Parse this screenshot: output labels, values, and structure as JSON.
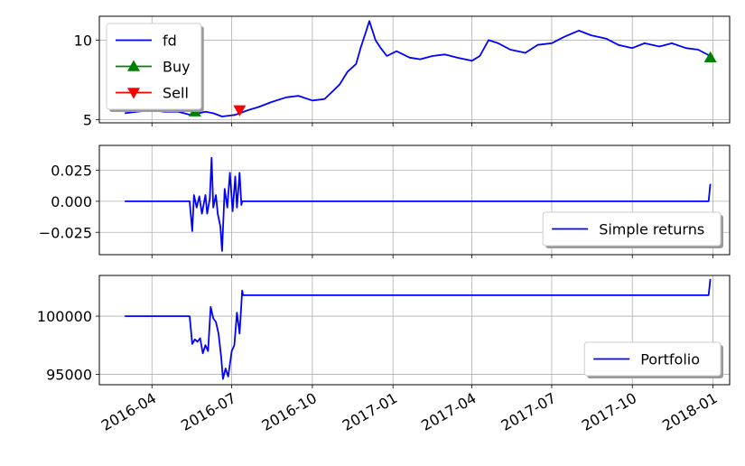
{
  "chart_data": [
    {
      "type": "line",
      "panel": "price",
      "ylim": [
        4.8,
        11.5
      ],
      "yticks": [
        5,
        10
      ],
      "grid": true,
      "legend": {
        "placement": "upper-left",
        "entries": [
          {
            "label": "fd",
            "color": "#0000ff",
            "marker": "none"
          },
          {
            "label": "Buy",
            "color": "#008000",
            "marker": "triangle-up"
          },
          {
            "label": "Sell",
            "color": "#ff0000",
            "marker": "triangle-down"
          }
        ]
      },
      "series": [
        {
          "name": "fd",
          "color": "#0000ff",
          "points": [
            [
              "2016-03-01",
              5.4
            ],
            [
              "2016-03-15",
              5.5
            ],
            [
              "2016-04-01",
              5.6
            ],
            [
              "2016-04-15",
              5.5
            ],
            [
              "2016-05-01",
              5.5
            ],
            [
              "2016-05-15",
              5.3
            ],
            [
              "2016-06-01",
              5.5
            ],
            [
              "2016-06-10",
              5.4
            ],
            [
              "2016-06-20",
              5.2
            ],
            [
              "2016-07-05",
              5.3
            ],
            [
              "2016-07-20",
              5.6
            ],
            [
              "2016-08-01",
              5.8
            ],
            [
              "2016-08-15",
              6.1
            ],
            [
              "2016-09-01",
              6.4
            ],
            [
              "2016-09-15",
              6.5
            ],
            [
              "2016-10-01",
              6.2
            ],
            [
              "2016-10-15",
              6.3
            ],
            [
              "2016-11-01",
              7.2
            ],
            [
              "2016-11-10",
              8.0
            ],
            [
              "2016-11-20",
              8.5
            ],
            [
              "2016-11-25",
              9.5
            ],
            [
              "2016-12-01",
              10.5
            ],
            [
              "2016-12-05",
              11.2
            ],
            [
              "2016-12-12",
              10.0
            ],
            [
              "2016-12-18",
              9.5
            ],
            [
              "2016-12-25",
              9.0
            ],
            [
              "2017-01-05",
              9.3
            ],
            [
              "2017-01-20",
              8.9
            ],
            [
              "2017-02-01",
              8.8
            ],
            [
              "2017-02-15",
              9.0
            ],
            [
              "2017-03-01",
              9.1
            ],
            [
              "2017-03-15",
              8.9
            ],
            [
              "2017-04-01",
              8.7
            ],
            [
              "2017-04-10",
              9.0
            ],
            [
              "2017-04-20",
              10.0
            ],
            [
              "2017-05-01",
              9.8
            ],
            [
              "2017-05-15",
              9.4
            ],
            [
              "2017-06-01",
              9.2
            ],
            [
              "2017-06-15",
              9.7
            ],
            [
              "2017-07-01",
              9.8
            ],
            [
              "2017-07-15",
              10.2
            ],
            [
              "2017-08-01",
              10.6
            ],
            [
              "2017-08-15",
              10.3
            ],
            [
              "2017-09-01",
              10.1
            ],
            [
              "2017-09-15",
              9.7
            ],
            [
              "2017-10-01",
              9.5
            ],
            [
              "2017-10-15",
              9.8
            ],
            [
              "2017-11-01",
              9.6
            ],
            [
              "2017-11-15",
              9.8
            ],
            [
              "2017-12-01",
              9.5
            ],
            [
              "2017-12-15",
              9.4
            ],
            [
              "2017-12-29",
              9.0
            ]
          ]
        }
      ],
      "markers": [
        {
          "label": "Buy",
          "marker": "triangle-up",
          "color": "#008000",
          "points": [
            [
              "2016-05-20",
              5.5
            ],
            [
              "2017-12-29",
              8.9
            ]
          ]
        },
        {
          "label": "Sell",
          "marker": "triangle-down",
          "color": "#ff0000",
          "points": [
            [
              "2016-07-10",
              5.6
            ]
          ]
        }
      ]
    },
    {
      "type": "line",
      "panel": "returns",
      "ylim": [
        -0.043,
        0.045
      ],
      "yticks": [
        0.025,
        0.0,
        -0.025
      ],
      "yticklabels": [
        "0.025",
        "0.000",
        "−0.025"
      ],
      "grid": true,
      "legend": {
        "placement": "lower-right",
        "entries": [
          {
            "label": "Simple returns",
            "color": "#0000ff",
            "marker": "none"
          }
        ]
      },
      "series": [
        {
          "name": "Simple returns",
          "color": "#0000ff",
          "points": [
            [
              "2016-03-01",
              0.0
            ],
            [
              "2016-05-14",
              0.0
            ],
            [
              "2016-05-17",
              -0.024
            ],
            [
              "2016-05-19",
              0.005
            ],
            [
              "2016-05-22",
              -0.005
            ],
            [
              "2016-05-25",
              0.004
            ],
            [
              "2016-05-28",
              -0.01
            ],
            [
              "2016-06-01",
              0.005
            ],
            [
              "2016-06-03",
              -0.01
            ],
            [
              "2016-06-06",
              0.002
            ],
            [
              "2016-06-08",
              0.035
            ],
            [
              "2016-06-10",
              -0.005
            ],
            [
              "2016-06-13",
              0.005
            ],
            [
              "2016-06-15",
              -0.01
            ],
            [
              "2016-06-18",
              -0.02
            ],
            [
              "2016-06-20",
              -0.04
            ],
            [
              "2016-06-23",
              0.01
            ],
            [
              "2016-06-26",
              -0.005
            ],
            [
              "2016-06-29",
              0.023
            ],
            [
              "2016-07-02",
              -0.008
            ],
            [
              "2016-07-05",
              0.02
            ],
            [
              "2016-07-07",
              -0.005
            ],
            [
              "2016-07-10",
              0.023
            ],
            [
              "2016-07-12",
              -0.003
            ],
            [
              "2016-07-13",
              0.0
            ],
            [
              "2017-12-27",
              0.0
            ],
            [
              "2017-12-29",
              0.014
            ]
          ]
        }
      ]
    },
    {
      "type": "line",
      "panel": "portfolio",
      "ylim": [
        94100,
        103500
      ],
      "yticks": [
        100000,
        95000
      ],
      "yticklabels": [
        "100000",
        "95000"
      ],
      "grid": true,
      "legend": {
        "placement": "lower-right",
        "entries": [
          {
            "label": "Portfolio",
            "color": "#0000ff",
            "marker": "none"
          }
        ]
      },
      "series": [
        {
          "name": "Portfolio",
          "color": "#0000ff",
          "points": [
            [
              "2016-03-01",
              100000
            ],
            [
              "2016-05-14",
              100000
            ],
            [
              "2016-05-17",
              97600
            ],
            [
              "2016-05-20",
              98000
            ],
            [
              "2016-05-23",
              97800
            ],
            [
              "2016-05-26",
              98100
            ],
            [
              "2016-05-29",
              96800
            ],
            [
              "2016-06-01",
              97500
            ],
            [
              "2016-06-04",
              97000
            ],
            [
              "2016-06-07",
              100800
            ],
            [
              "2016-06-10",
              99800
            ],
            [
              "2016-06-13",
              99500
            ],
            [
              "2016-06-16",
              98500
            ],
            [
              "2016-06-19",
              96500
            ],
            [
              "2016-06-21",
              94600
            ],
            [
              "2016-06-24",
              95500
            ],
            [
              "2016-06-27",
              94800
            ],
            [
              "2016-07-01",
              97000
            ],
            [
              "2016-07-04",
              97500
            ],
            [
              "2016-07-07",
              100300
            ],
            [
              "2016-07-10",
              98500
            ],
            [
              "2016-07-13",
              102200
            ],
            [
              "2016-07-14",
              101800
            ],
            [
              "2017-12-27",
              101800
            ],
            [
              "2017-12-29",
              103200
            ]
          ]
        }
      ]
    }
  ],
  "x_axis": {
    "type": "date",
    "range": [
      "2016-02-01",
      "2018-01-20"
    ],
    "ticks": [
      {
        "date": "2016-04-01",
        "label": "2016-04"
      },
      {
        "date": "2016-07-01",
        "label": "2016-07"
      },
      {
        "date": "2016-10-01",
        "label": "2016-10"
      },
      {
        "date": "2017-01-01",
        "label": "2017-01"
      },
      {
        "date": "2017-04-01",
        "label": "2017-04"
      },
      {
        "date": "2017-07-01",
        "label": "2017-07"
      },
      {
        "date": "2017-10-01",
        "label": "2017-10"
      },
      {
        "date": "2018-01-01",
        "label": "2018-01"
      }
    ]
  }
}
